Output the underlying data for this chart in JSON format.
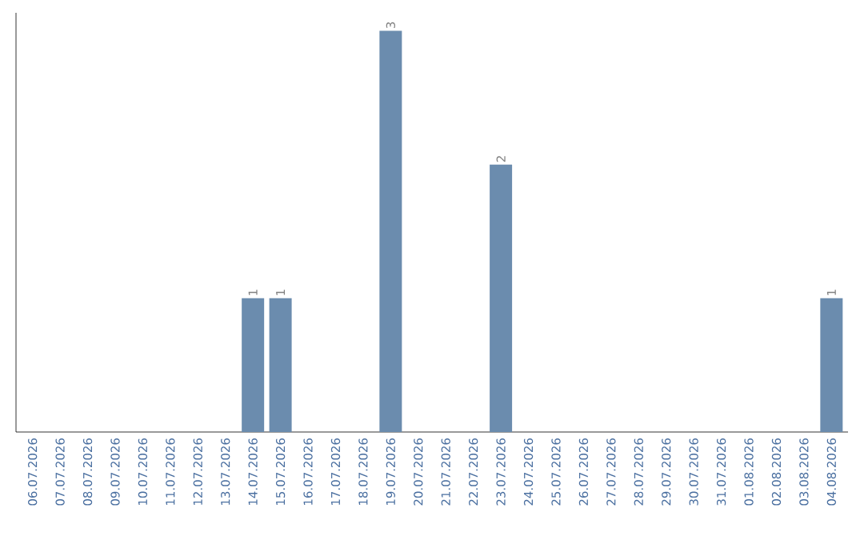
{
  "chart_data": {
    "type": "bar",
    "categories": [
      "06.07.2026",
      "07.07.2026",
      "08.07.2026",
      "09.07.2026",
      "10.07.2026",
      "11.07.2026",
      "12.07.2026",
      "13.07.2026",
      "14.07.2026",
      "15.07.2026",
      "16.07.2026",
      "17.07.2026",
      "18.07.2026",
      "19.07.2026",
      "20.07.2026",
      "21.07.2026",
      "22.07.2026",
      "23.07.2026",
      "24.07.2026",
      "25.07.2026",
      "26.07.2026",
      "27.07.2026",
      "28.07.2026",
      "29.07.2026",
      "30.07.2026",
      "31.07.2026",
      "01.08.2026",
      "02.08.2026",
      "03.08.2026",
      "04.08.2026"
    ],
    "values": [
      0,
      0,
      0,
      0,
      0,
      0,
      0,
      0,
      1,
      1,
      0,
      0,
      0,
      3,
      0,
      0,
      0,
      2,
      0,
      0,
      0,
      0,
      0,
      0,
      0,
      0,
      0,
      0,
      0,
      1
    ],
    "value_labels": [
      null,
      null,
      null,
      null,
      null,
      null,
      null,
      null,
      "1",
      "1",
      null,
      null,
      null,
      "3",
      null,
      null,
      null,
      "2",
      null,
      null,
      null,
      null,
      null,
      null,
      null,
      null,
      null,
      null,
      null,
      "1"
    ],
    "color": "#6b8cae",
    "tick_labels": "x"
  }
}
